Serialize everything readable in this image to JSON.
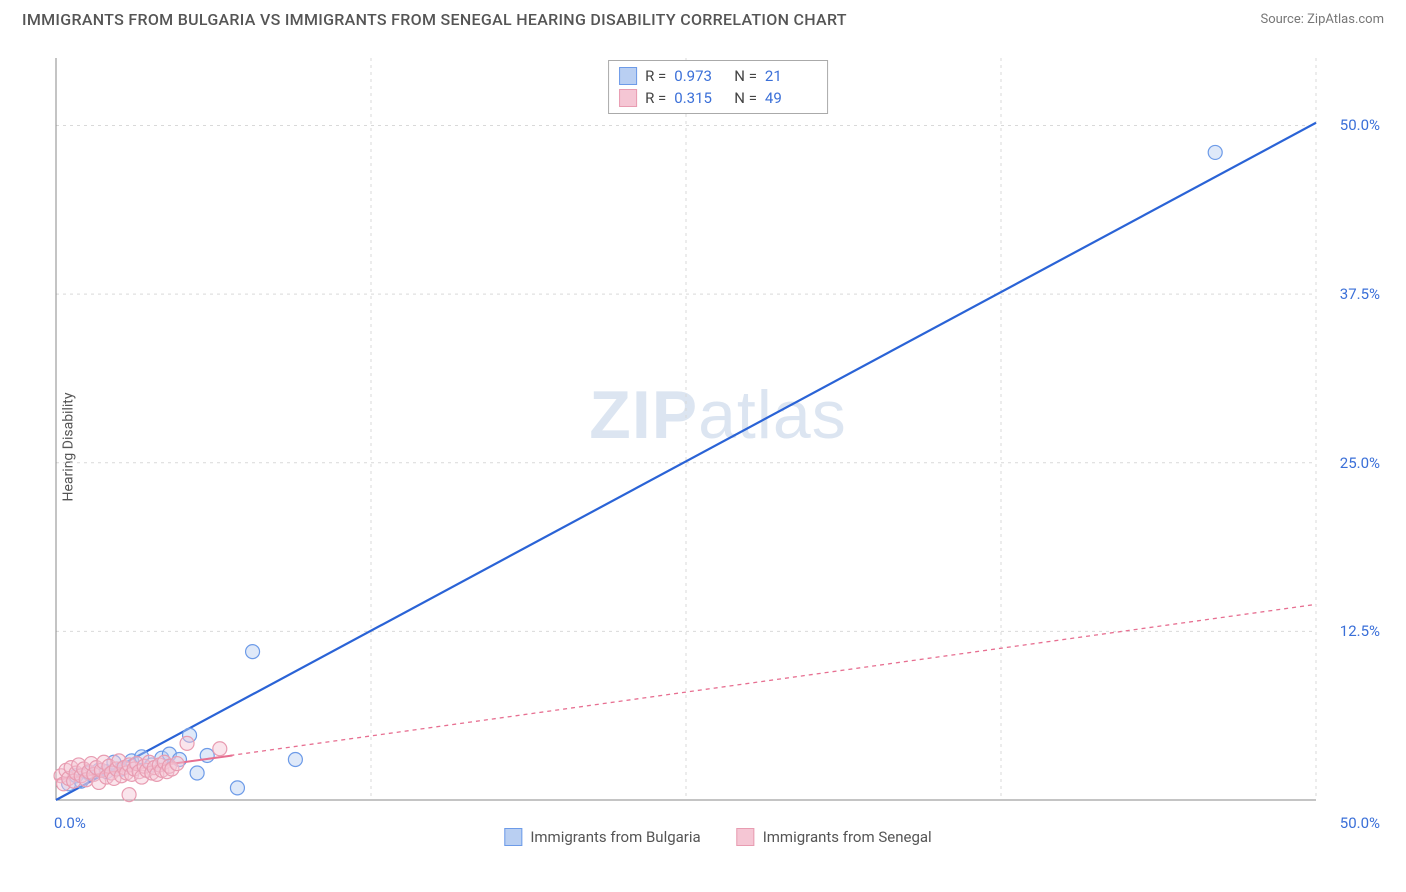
{
  "title": "IMMIGRANTS FROM BULGARIA VS IMMIGRANTS FROM SENEGAL HEARING DISABILITY CORRELATION CHART",
  "source": "Source: ZipAtlas.com",
  "watermark": "ZIPatlas",
  "y_axis_label": "Hearing Disability",
  "chart": {
    "type": "scatter",
    "xlim": [
      0,
      50
    ],
    "ylim": [
      0,
      55
    ],
    "x_ticks": [
      {
        "value": 0,
        "label": "0.0%"
      },
      {
        "value": 50,
        "label": "50.0%"
      }
    ],
    "y_ticks": [
      {
        "value": 12.5,
        "label": "12.5%"
      },
      {
        "value": 25.0,
        "label": "25.0%"
      },
      {
        "value": 37.5,
        "label": "37.5%"
      },
      {
        "value": 50.0,
        "label": "50.0%"
      }
    ],
    "x_gridlines": [
      12.5,
      25.0,
      37.5,
      50.0
    ],
    "y_gridlines": [
      12.5,
      25.0,
      37.5,
      50.0
    ],
    "grid_color": "#d9d9d9",
    "axis_color": "#888888",
    "background_color": "#ffffff",
    "tick_color": "#3a6fd8",
    "tick_fontsize": 15,
    "marker_radius": 7,
    "marker_opacity": 0.45,
    "series": [
      {
        "name": "Immigrants from Bulgaria",
        "color": "#6d9be8",
        "fill": "#b9cff2",
        "line_color": "#2a63d6",
        "line_width": 2.2,
        "line_dash": "none",
        "r": 0.973,
        "n": 21,
        "trend": {
          "x1": 0,
          "y1": 0,
          "x2": 50,
          "y2": 50.2
        },
        "points": [
          [
            0.5,
            1.2
          ],
          [
            0.8,
            1.8
          ],
          [
            1.0,
            1.4
          ],
          [
            1.3,
            2.0
          ],
          [
            1.7,
            2.2
          ],
          [
            2.0,
            2.1
          ],
          [
            2.3,
            2.8
          ],
          [
            2.6,
            2.3
          ],
          [
            3.0,
            2.9
          ],
          [
            3.4,
            3.2
          ],
          [
            3.8,
            2.6
          ],
          [
            4.2,
            3.1
          ],
          [
            4.5,
            3.4
          ],
          [
            4.9,
            3.0
          ],
          [
            5.3,
            4.8
          ],
          [
            5.6,
            2.0
          ],
          [
            6.0,
            3.3
          ],
          [
            7.2,
            0.9
          ],
          [
            7.8,
            11.0
          ],
          [
            9.5,
            3.0
          ],
          [
            46.0,
            48.0
          ]
        ]
      },
      {
        "name": "Immigrants from Senegal",
        "color": "#e89cb1",
        "fill": "#f5c6d4",
        "line_color": "#e76f91",
        "line_width": 1.3,
        "line_dash": "4,4",
        "solid_segment": {
          "x1": 0,
          "y1": 1.5,
          "x2": 7,
          "y2": 3.3
        },
        "r": 0.315,
        "n": 49,
        "trend": {
          "x1": 0,
          "y1": 1.5,
          "x2": 50,
          "y2": 14.5
        },
        "points": [
          [
            0.2,
            1.8
          ],
          [
            0.3,
            1.2
          ],
          [
            0.4,
            2.2
          ],
          [
            0.5,
            1.6
          ],
          [
            0.6,
            2.4
          ],
          [
            0.7,
            1.4
          ],
          [
            0.8,
            2.0
          ],
          [
            0.9,
            2.6
          ],
          [
            1.0,
            1.8
          ],
          [
            1.1,
            2.3
          ],
          [
            1.2,
            1.5
          ],
          [
            1.3,
            2.1
          ],
          [
            1.4,
            2.7
          ],
          [
            1.5,
            1.9
          ],
          [
            1.6,
            2.4
          ],
          [
            1.7,
            1.3
          ],
          [
            1.8,
            2.2
          ],
          [
            1.9,
            2.8
          ],
          [
            2.0,
            1.7
          ],
          [
            2.1,
            2.5
          ],
          [
            2.2,
            2.0
          ],
          [
            2.3,
            1.6
          ],
          [
            2.4,
            2.3
          ],
          [
            2.5,
            2.9
          ],
          [
            2.6,
            1.8
          ],
          [
            2.7,
            2.4
          ],
          [
            2.8,
            2.0
          ],
          [
            2.9,
            0.4
          ],
          [
            2.9,
            2.6
          ],
          [
            3.0,
            1.9
          ],
          [
            3.1,
            2.3
          ],
          [
            3.2,
            2.7
          ],
          [
            3.3,
            2.1
          ],
          [
            3.4,
            1.7
          ],
          [
            3.5,
            2.5
          ],
          [
            3.6,
            2.2
          ],
          [
            3.7,
            2.8
          ],
          [
            3.8,
            2.0
          ],
          [
            3.9,
            2.4
          ],
          [
            4.0,
            1.9
          ],
          [
            4.1,
            2.6
          ],
          [
            4.2,
            2.2
          ],
          [
            4.3,
            2.8
          ],
          [
            4.4,
            2.1
          ],
          [
            4.5,
            2.5
          ],
          [
            4.6,
            2.3
          ],
          [
            4.8,
            2.7
          ],
          [
            5.2,
            4.2
          ],
          [
            6.5,
            3.8
          ]
        ]
      }
    ]
  },
  "legend": {
    "series1_label": "Immigrants from Bulgaria",
    "series2_label": "Immigrants from Senegal"
  }
}
